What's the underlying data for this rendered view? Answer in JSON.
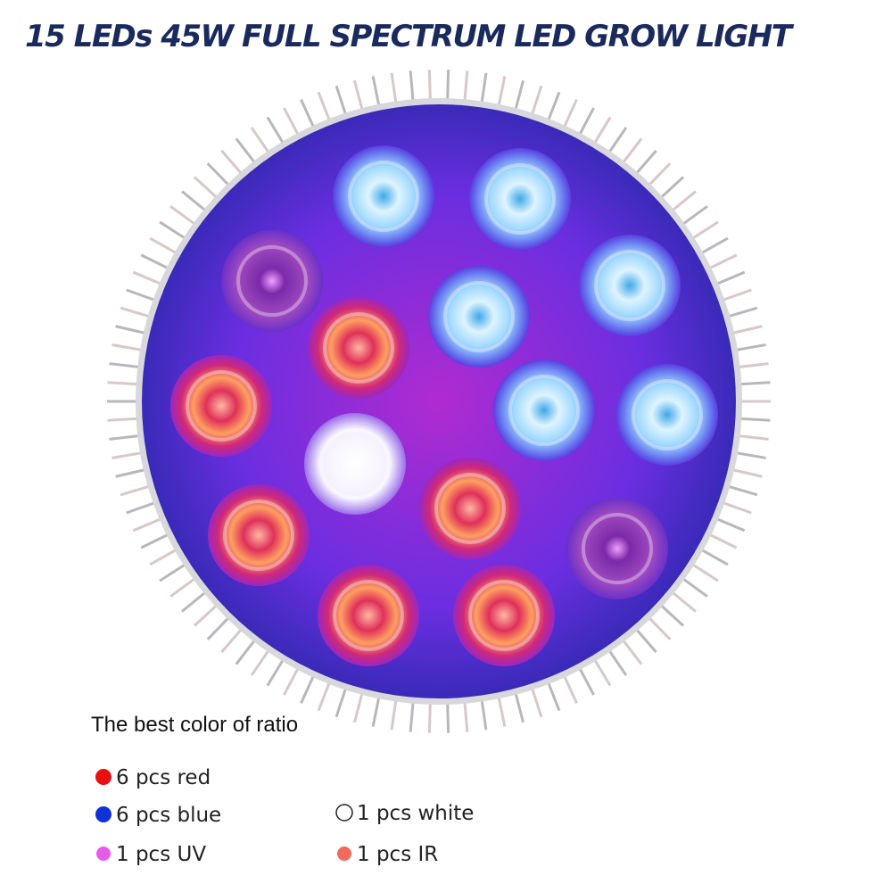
{
  "header": {
    "title": "15 LEDs 45W FULL SPECTRUM LED GROW LIGHT"
  },
  "legend": {
    "title": "The best color of ratio",
    "items": [
      "6 pcs red",
      "6 pcs blue",
      "1 pcs UV",
      "1  pcs white",
      "1  pcs IR"
    ]
  }
}
